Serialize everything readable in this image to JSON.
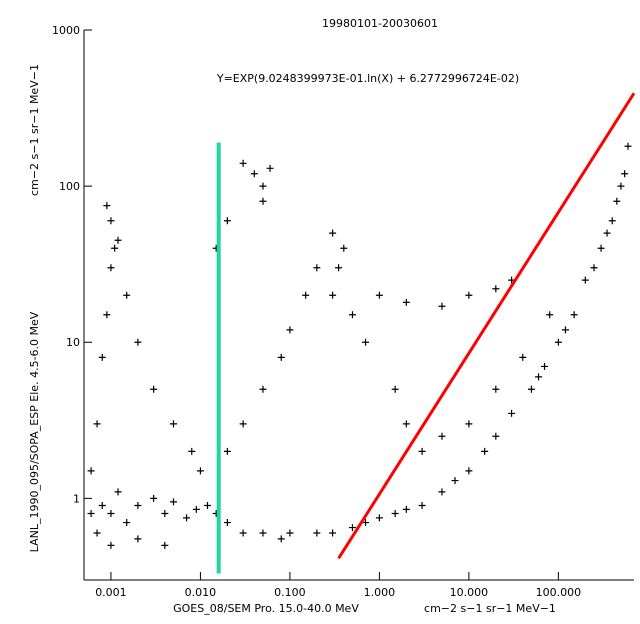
{
  "chart_data": {
    "type": "scatter",
    "title": "19980101-20030601",
    "annotation": "Y=EXP(9.0248399973E-01.ln(X) + 6.2772996724E-02)",
    "xlabel": "GOES_08/SEM Pro. 15.0-40.0 MeV",
    "xlabel_units": "cm−2 s−1 sr−1 MeV−1",
    "ylabel": "LANL_1990_095/SOPA_ESP Ele. 4.5-6.0 MeV",
    "ylabel_units": "cm−2 s−1 sr−1 MeV−1",
    "x_scale": "log",
    "y_scale": "log",
    "xlim": [
      0.0005,
      700
    ],
    "ylim": [
      0.3,
      1000
    ],
    "x_ticks": [
      {
        "value": 0.001,
        "label": "0.001"
      },
      {
        "value": 0.01,
        "label": "0.010"
      },
      {
        "value": 0.1,
        "label": "0.100"
      },
      {
        "value": 1,
        "label": "1.000"
      },
      {
        "value": 10,
        "label": "10.000"
      },
      {
        "value": 100,
        "label": "100.000"
      }
    ],
    "y_ticks": [
      {
        "value": 1,
        "label": "1"
      },
      {
        "value": 10,
        "label": "10"
      },
      {
        "value": 100,
        "label": "100"
      },
      {
        "value": 1000,
        "label": "1000"
      }
    ],
    "fit_line": {
      "color": "#ff0000",
      "slope": 0.90248399973,
      "intercept": 0.062772996724,
      "x_range": [
        0.35,
        700
      ]
    },
    "threshold_line": {
      "color": "#1fd6a0",
      "x": 0.016,
      "y_range": [
        0.33,
        190
      ]
    },
    "marker": "+",
    "marker_color": "#000000",
    "series": [
      {
        "points": [
          [
            0.0008,
            0.9
          ],
          [
            0.001,
            0.8
          ],
          [
            0.0012,
            1.1
          ],
          [
            0.0015,
            0.7
          ],
          [
            0.002,
            0.9
          ],
          [
            0.003,
            1.0
          ],
          [
            0.004,
            0.8
          ],
          [
            0.005,
            0.95
          ],
          [
            0.007,
            0.75
          ],
          [
            0.009,
            0.85
          ],
          [
            0.012,
            0.9
          ],
          [
            0.015,
            0.8
          ],
          [
            0.02,
            0.7
          ],
          [
            0.03,
            0.6
          ],
          [
            0.05,
            0.6
          ],
          [
            0.08,
            0.55
          ],
          [
            0.1,
            0.6
          ],
          [
            0.2,
            0.6
          ],
          [
            0.3,
            0.6
          ],
          [
            0.5,
            0.65
          ],
          [
            0.7,
            0.7
          ],
          [
            1.0,
            0.75
          ],
          [
            1.5,
            0.8
          ],
          [
            2.0,
            0.85
          ],
          [
            3.0,
            0.9
          ],
          [
            5.0,
            1.1
          ],
          [
            7.0,
            1.3
          ],
          [
            10.0,
            1.5
          ],
          [
            15.0,
            2.0
          ],
          [
            20.0,
            2.5
          ],
          [
            30.0,
            3.5
          ],
          [
            50.0,
            5.0
          ],
          [
            70.0,
            7.0
          ],
          [
            100.0,
            10.0
          ],
          [
            150.0,
            15.0
          ],
          [
            200.0,
            25.0
          ],
          [
            300.0,
            40.0
          ],
          [
            400.0,
            60.0
          ],
          [
            500.0,
            100.0
          ],
          [
            600.0,
            180.0
          ],
          [
            0.001,
            60.0
          ],
          [
            0.0012,
            45.0
          ],
          [
            0.0015,
            20.0
          ],
          [
            0.002,
            10.0
          ],
          [
            0.003,
            5.0
          ],
          [
            0.005,
            3.0
          ],
          [
            0.008,
            2.0
          ],
          [
            0.01,
            1.5
          ],
          [
            0.0009,
            75.0
          ],
          [
            0.001,
            30.0
          ],
          [
            0.02,
            2.0
          ],
          [
            0.03,
            3.0
          ],
          [
            0.05,
            5.0
          ],
          [
            0.08,
            8.0
          ],
          [
            0.1,
            12.0
          ],
          [
            0.15,
            20.0
          ],
          [
            0.2,
            30.0
          ],
          [
            0.3,
            20.0
          ],
          [
            0.5,
            15.0
          ],
          [
            0.7,
            10.0
          ],
          [
            0.03,
            140.0
          ],
          [
            0.04,
            120.0
          ],
          [
            0.05,
            100.0
          ],
          [
            0.06,
            130.0
          ],
          [
            0.05,
            80.0
          ],
          [
            0.02,
            60.0
          ],
          [
            0.015,
            40.0
          ],
          [
            0.3,
            50.0
          ],
          [
            0.4,
            40.0
          ],
          [
            0.35,
            30.0
          ],
          [
            1.0,
            20.0
          ],
          [
            2.0,
            18.0
          ],
          [
            5.0,
            17.0
          ],
          [
            10.0,
            20.0
          ],
          [
            20.0,
            22.0
          ],
          [
            30.0,
            25.0
          ],
          [
            1.5,
            5.0
          ],
          [
            2.0,
            3.0
          ],
          [
            3.0,
            2.0
          ],
          [
            5.0,
            2.5
          ],
          [
            0.001,
            0.5
          ],
          [
            0.002,
            0.55
          ],
          [
            0.004,
            0.5
          ],
          [
            0.0007,
            0.6
          ],
          [
            0.0006,
            0.8
          ],
          [
            0.0006,
            1.5
          ],
          [
            0.0007,
            3.0
          ],
          [
            0.0008,
            8.0
          ],
          [
            0.0009,
            15.0
          ],
          [
            0.0011,
            40.0
          ],
          [
            10.0,
            3.0
          ],
          [
            20.0,
            5.0
          ],
          [
            40.0,
            8.0
          ],
          [
            60.0,
            6.0
          ],
          [
            80.0,
            15.0
          ],
          [
            120.0,
            12.0
          ],
          [
            250.0,
            30.0
          ],
          [
            350.0,
            50.0
          ],
          [
            450.0,
            80.0
          ],
          [
            550.0,
            120.0
          ]
        ]
      }
    ]
  }
}
